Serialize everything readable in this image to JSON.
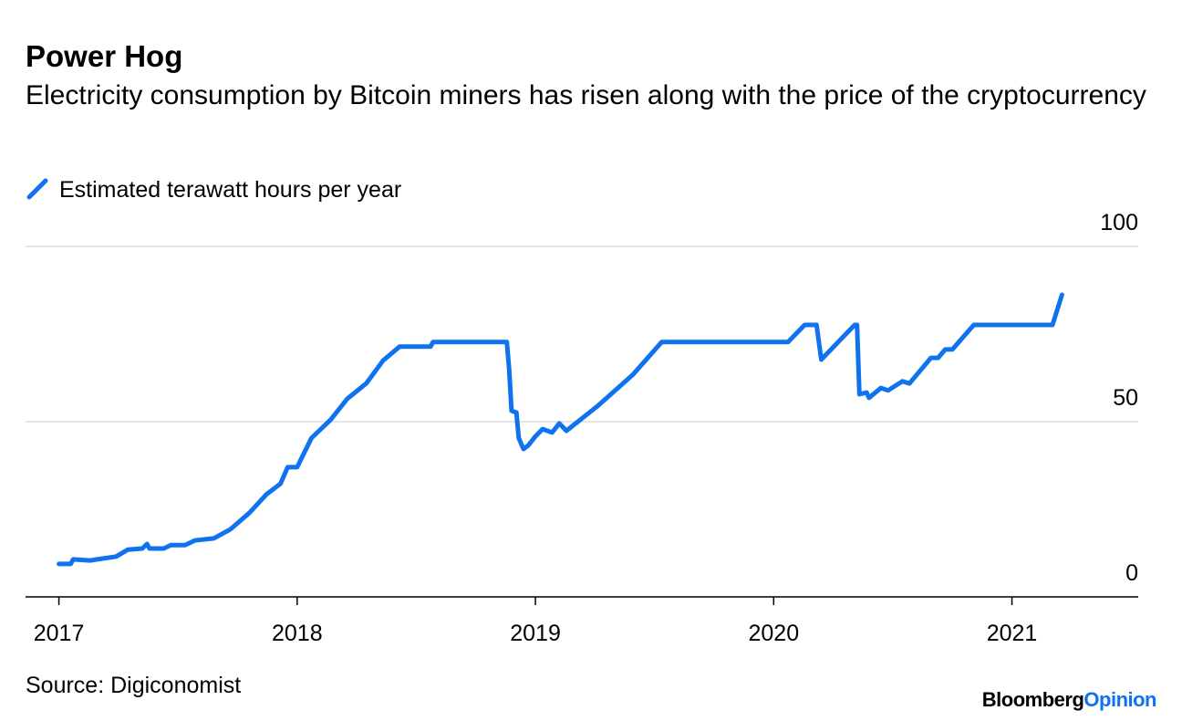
{
  "chart_data": {
    "type": "line",
    "title": "Power Hog",
    "subtitle": "Electricity consumption by Bitcoin miners has risen along with the price of the cryptocurrency",
    "source": "Source: Digiconomist",
    "brand": "Bloomberg",
    "brand_suffix": "Opinion",
    "x": [
      2017.0,
      2017.05,
      2017.06,
      2017.13,
      2017.24,
      2017.29,
      2017.35,
      2017.37,
      2017.38,
      2017.44,
      2017.47,
      2017.53,
      2017.57,
      2017.65,
      2017.72,
      2017.8,
      2017.87,
      2017.93,
      2017.96,
      2018.0,
      2018.06,
      2018.14,
      2018.21,
      2018.29,
      2018.36,
      2018.43,
      2018.56,
      2018.57,
      2018.88,
      2018.89,
      2018.9,
      2018.92,
      2018.93,
      2018.95,
      2018.97,
      2019.0,
      2019.03,
      2019.07,
      2019.1,
      2019.13,
      2019.26,
      2019.41,
      2019.53,
      2020.06,
      2020.13,
      2020.18,
      2020.2,
      2020.34,
      2020.35,
      2020.36,
      2020.39,
      2020.4,
      2020.45,
      2020.48,
      2020.54,
      2020.57,
      2020.66,
      2020.69,
      2020.72,
      2020.75,
      2020.84,
      2021.17,
      2021.21
    ],
    "series": [
      {
        "name": "Estimated terawatt hours per year",
        "color": "#0f72ee",
        "values": [
          9.4,
          9.4,
          10.7,
          10.4,
          11.5,
          13.5,
          13.8,
          15.1,
          13.8,
          13.8,
          14.8,
          14.8,
          16.1,
          16.7,
          19.3,
          24.0,
          29.2,
          32.3,
          37.0,
          37.0,
          45.3,
          50.5,
          56.5,
          60.9,
          67.4,
          71.4,
          71.4,
          72.7,
          72.7,
          64.8,
          53.1,
          52.6,
          45.3,
          42.2,
          43.2,
          45.8,
          47.9,
          46.9,
          49.5,
          47.4,
          54.4,
          63.5,
          72.7,
          72.7,
          77.6,
          77.6,
          67.7,
          77.6,
          77.6,
          57.8,
          58.3,
          56.8,
          59.6,
          58.9,
          61.5,
          60.9,
          68.2,
          68.2,
          70.6,
          70.6,
          77.6,
          77.6,
          86.2
        ]
      }
    ],
    "xlim": [
      2016.86,
      2021.53
    ],
    "xticks": [
      2017,
      2018,
      2019,
      2020,
      2021
    ],
    "ylim": [
      0,
      100
    ],
    "yticks": [
      0,
      50,
      100
    ],
    "grid": true
  }
}
